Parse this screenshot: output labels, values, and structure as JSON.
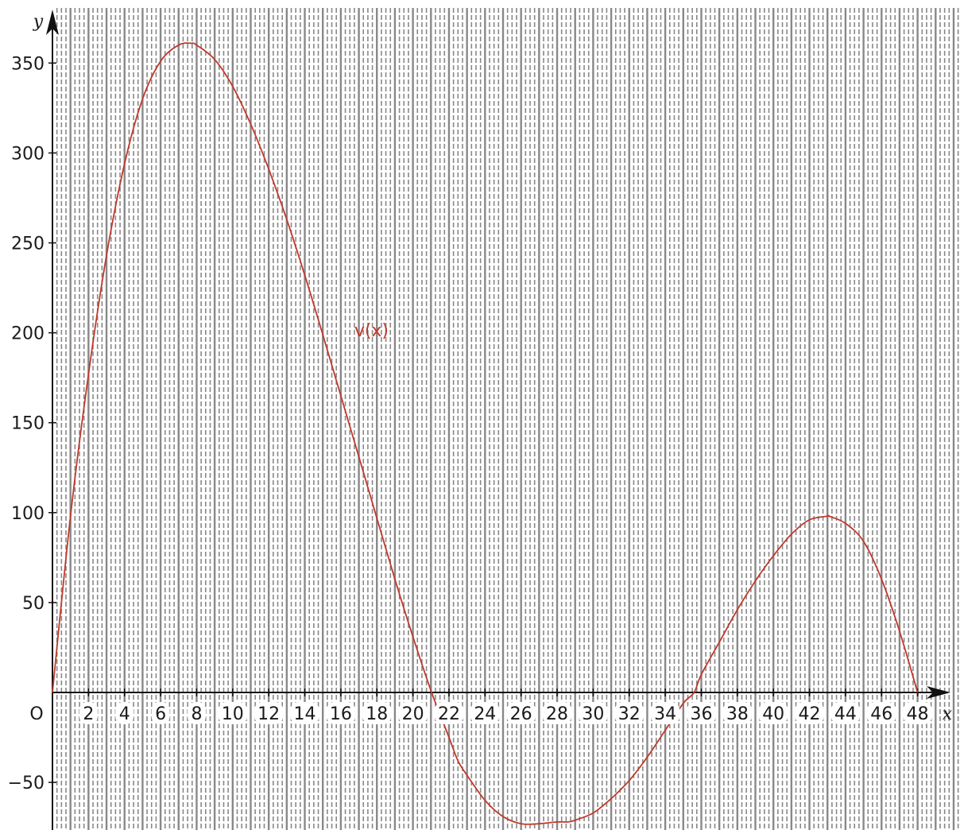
{
  "chart_data": {
    "type": "line",
    "xlabel": "x",
    "ylabel": "y",
    "origin_label": "O",
    "xlim": [
      0,
      50
    ],
    "ylim": [
      -77,
      365
    ],
    "x_ticks": [
      2,
      4,
      6,
      8,
      10,
      12,
      14,
      16,
      18,
      20,
      22,
      24,
      26,
      28,
      30,
      32,
      34,
      36,
      38,
      40,
      42,
      44,
      46,
      48
    ],
    "x_tick_labels": [
      "2",
      "4",
      "6",
      "8",
      "10",
      "12",
      "14",
      "16",
      "18",
      "20",
      "22",
      "24",
      "26",
      "28",
      "30",
      "32",
      "34",
      "36",
      "38",
      "40",
      "42",
      "44",
      "46",
      "48"
    ],
    "y_ticks": [
      -50,
      50,
      100,
      150,
      200,
      250,
      300,
      350
    ],
    "y_tick_labels": [
      "−50",
      "50",
      "100",
      "150",
      "200",
      "250",
      "300",
      "350"
    ],
    "grid": true,
    "grid_color": "#888888",
    "series": [
      {
        "name": "v(x)",
        "color": "#c0392b",
        "x": [
          0,
          1,
          2,
          3,
          4,
          5,
          6,
          7,
          7.7,
          8,
          9,
          10,
          11,
          12,
          13,
          14,
          15,
          16,
          17,
          18,
          19,
          20,
          21,
          22,
          22.5,
          23,
          24,
          25,
          26,
          27,
          28,
          28.6,
          29,
          30,
          31,
          32,
          33,
          34,
          35,
          35.6,
          36,
          37,
          38,
          39,
          40,
          41,
          42,
          43,
          43.1,
          44,
          45,
          46,
          47,
          48
        ],
        "y": [
          0,
          98,
          177,
          243,
          294,
          330,
          351,
          360,
          361,
          360,
          352,
          337,
          316,
          291,
          263,
          232,
          199,
          165,
          131,
          97,
          63,
          31,
          1,
          -25,
          -38,
          -46,
          -60,
          -69,
          -73,
          -73,
          -72,
          -72,
          -71,
          -67,
          -59,
          -49,
          -36,
          -21,
          -6,
          0,
          10,
          28,
          46,
          62,
          76,
          88,
          96,
          98,
          98,
          94,
          84,
          63,
          34,
          0
        ]
      }
    ]
  }
}
